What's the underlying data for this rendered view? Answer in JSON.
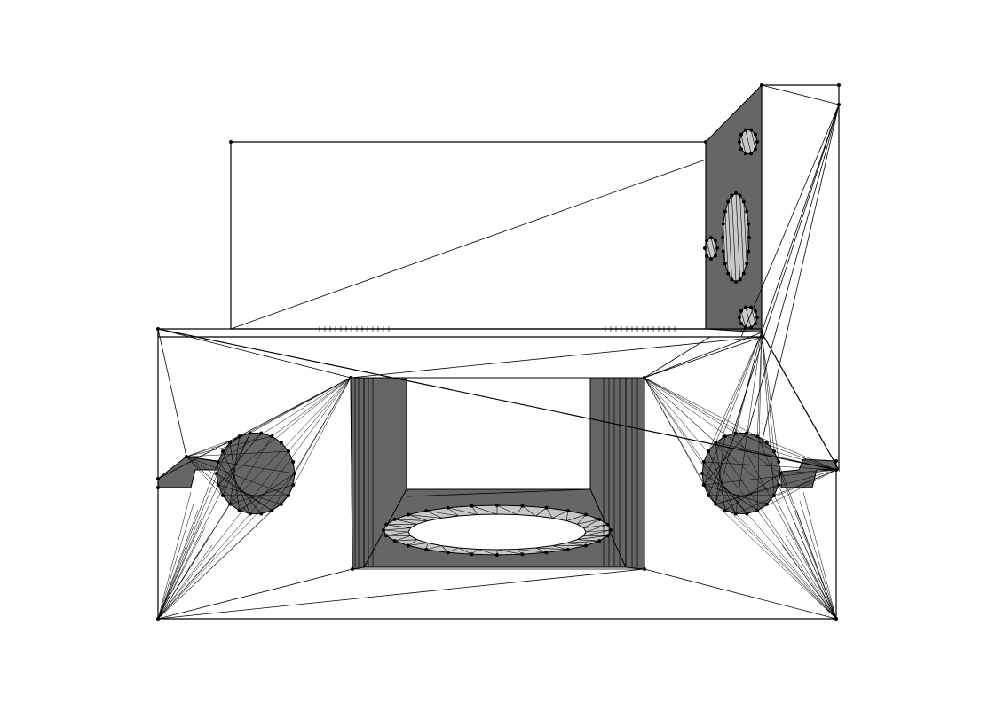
{
  "figure": {
    "kind": "triangulated mesh wireframe",
    "colors": {
      "background": "#ffffff",
      "edge": "#000000",
      "dark_face": "#666666",
      "light_face": "#c8c8c8",
      "vertex": "#000000"
    }
  }
}
